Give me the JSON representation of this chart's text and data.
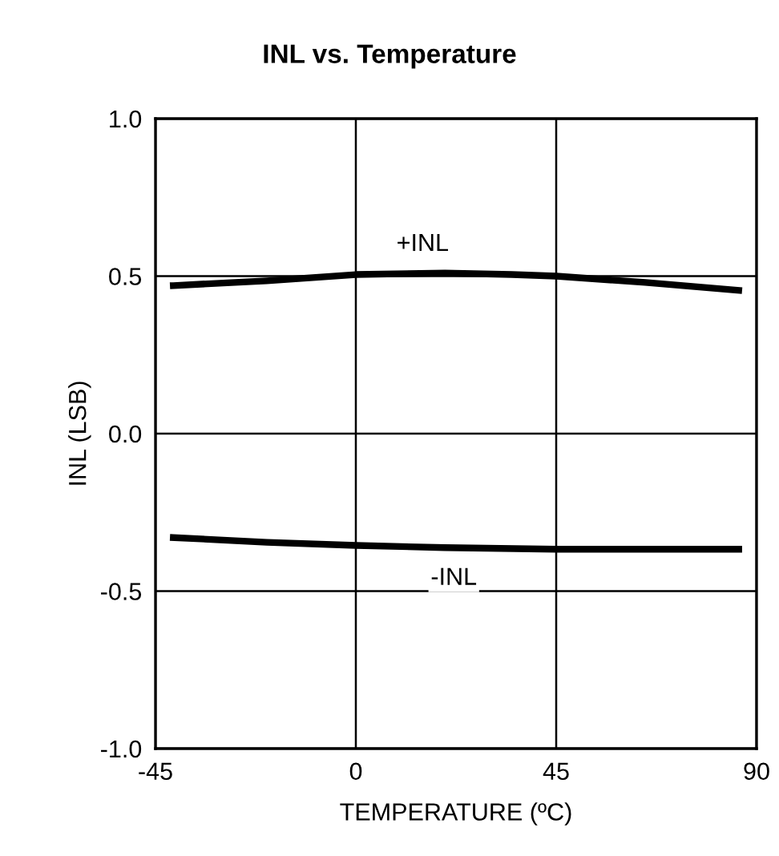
{
  "chart_data": {
    "type": "line",
    "title": "INL vs. Temperature",
    "xlabel": "TEMPERATURE (ºC)",
    "ylabel": "INL (LSB)",
    "xlim": [
      -45,
      90
    ],
    "xticks": [
      -45,
      0,
      45,
      90
    ],
    "ylim": [
      -1.0,
      1.0
    ],
    "yticks": [
      {
        "value": -1.0,
        "label": "-1.0"
      },
      {
        "value": -0.5,
        "label": "-0.5"
      },
      {
        "value": 0.0,
        "label": "0.0"
      },
      {
        "value": 0.5,
        "label": "0.5"
      },
      {
        "value": 1.0,
        "label": "1.0"
      }
    ],
    "grid": true,
    "marker": "none",
    "line_style": "solid",
    "series": [
      {
        "color": "#000000",
        "x": [
          -41,
          -20,
          0,
          20,
          35,
          45,
          65,
          86
        ],
        "values": [
          0.47,
          0.485,
          0.505,
          0.51,
          0.505,
          0.5,
          0.48,
          0.455
        ]
      },
      {
        "color": "#000000",
        "x": [
          -41,
          -20,
          0,
          20,
          45,
          65,
          86
        ],
        "values": [
          -0.33,
          -0.345,
          -0.355,
          -0.362,
          -0.367,
          -0.367,
          -0.367
        ]
      }
    ],
    "annotations": [
      {
        "text": "+INL",
        "x": 15,
        "y": 0.6
      },
      {
        "text": "-INL",
        "x": 22,
        "y": -0.46
      }
    ]
  }
}
